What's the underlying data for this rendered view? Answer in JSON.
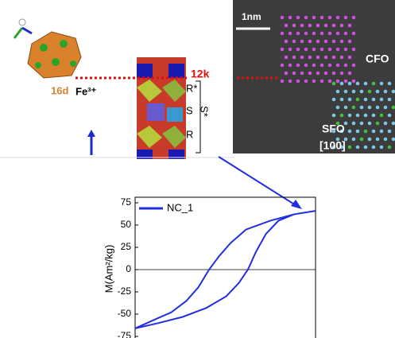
{
  "figure": {
    "labels": {
      "site_16d": "16d",
      "ion": "Fe³⁺",
      "site_12k": "12k",
      "r_star": "R*",
      "s": "S",
      "s_star": "S*",
      "r": "R",
      "scale_bar": "1nm",
      "cfo": "CFO",
      "sfo": "SFO",
      "zone_axis": "[100]"
    }
  },
  "chart_data": {
    "type": "line",
    "ylabel": "M(Am²/kg)",
    "x": [
      1.0,
      0.76,
      0.5,
      0.23,
      0.06,
      -0.07,
      -0.18,
      -0.3,
      -0.43,
      -0.6,
      -0.78,
      -1.0,
      -1.0,
      -0.74,
      -0.47,
      -0.21,
      0.01,
      0.15,
      0.25,
      0.34,
      0.45,
      0.59,
      0.76,
      1.0
    ],
    "series": [
      {
        "name": "NC_1",
        "color": "#1f2ee0",
        "values": [
          66,
          62,
          55,
          45,
          30,
          15,
          0,
          -20,
          -35,
          -48,
          -56,
          -66,
          -66,
          -60,
          -53,
          -43,
          -30,
          -15,
          0,
          20,
          40,
          55,
          62,
          66
        ]
      }
    ],
    "xlim": [
      -1.0,
      1.0
    ],
    "ylim": [
      -75,
      75
    ],
    "yticks": [
      75,
      50,
      25,
      0,
      -25,
      -50,
      -75
    ],
    "legend": "upper left"
  }
}
